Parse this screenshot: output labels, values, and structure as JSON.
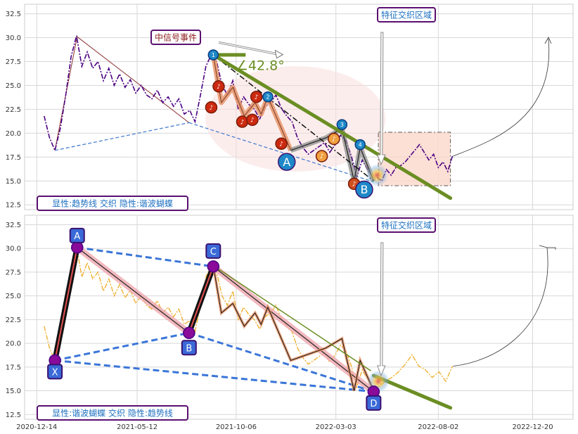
{
  "chart_data": [
    {
      "type": "line",
      "panel": "top",
      "title": "",
      "xlabel": "",
      "ylabel": "",
      "ylim": [
        12.0,
        33.5
      ],
      "yticks": [
        12.5,
        15.0,
        17.5,
        20.0,
        22.5,
        25.0,
        27.5,
        30.0,
        32.5
      ],
      "grid": true,
      "series": [
        {
          "name": "",
          "color": "#4b0082",
          "style": "dash-dot",
          "x": [
            "2020-12-25",
            "2021-01-02",
            "2021-01-10",
            "2021-01-18",
            "2021-01-26",
            "2021-02-03",
            "2021-02-11",
            "2021-02-19",
            "2021-02-27",
            "2021-03-07",
            "2021-03-15",
            "2021-03-23",
            "2021-03-31",
            "2021-04-08",
            "2021-04-16",
            "2021-04-24",
            "2021-05-02",
            "2021-05-10",
            "2021-05-18",
            "2021-05-26",
            "2021-06-03",
            "2021-06-11",
            "2021-06-19",
            "2021-06-27",
            "2021-07-05",
            "2021-07-13",
            "2021-07-21",
            "2021-07-29",
            "2021-08-06",
            "2021-08-14",
            "2021-08-22",
            "2021-08-30",
            "2021-09-07",
            "2021-09-15",
            "2021-09-23",
            "2021-10-01",
            "2021-10-09",
            "2021-10-17",
            "2021-10-25",
            "2021-11-02",
            "2021-11-10",
            "2021-11-18",
            "2021-11-26",
            "2021-12-04",
            "2021-12-12",
            "2021-12-20",
            "2021-12-28",
            "2022-01-05",
            "2022-01-13",
            "2022-01-21",
            "2022-01-29",
            "2022-02-06",
            "2022-02-14",
            "2022-02-22",
            "2022-03-02",
            "2022-03-10",
            "2022-03-18",
            "2022-03-26",
            "2022-04-03",
            "2022-04-11",
            "2022-04-19",
            "2022-04-27"
          ],
          "values": [
            21.8,
            19.5,
            18.2,
            20.5,
            24.0,
            28.0,
            30.2,
            27.0,
            28.5,
            26.8,
            27.5,
            25.5,
            26.8,
            25.0,
            26.2,
            24.8,
            25.6,
            24.2,
            25.0,
            24.0,
            23.6,
            24.5,
            23.2,
            23.8,
            22.8,
            23.6,
            22.0,
            22.4,
            21.2,
            24.0,
            27.0,
            28.2,
            27.5,
            25.0,
            24.0,
            25.5,
            22.5,
            23.8,
            23.0,
            22.5,
            21.5,
            22.8,
            23.2,
            24.0,
            22.6,
            21.8,
            21.2,
            19.5,
            18.5,
            17.8,
            18.2,
            18.6,
            19.0,
            18.0,
            18.8,
            19.8,
            19.2,
            17.6,
            15.4,
            17.2,
            16.2,
            15.3
          ]
        },
        {
          "name": "",
          "color": "#4b0082",
          "style": "dash-dot",
          "x": [
            "2022-05-03",
            "2022-05-10",
            "2022-05-17",
            "2022-05-24",
            "2022-05-31",
            "2022-06-07",
            "2022-06-14",
            "2022-06-21",
            "2022-06-28",
            "2022-07-05",
            "2022-07-12",
            "2022-07-19",
            "2022-07-26",
            "2022-08-02",
            "2022-08-09",
            "2022-08-16",
            "2022-08-23"
          ],
          "values": [
            15.4,
            15.0,
            16.2,
            15.6,
            16.4,
            16.6,
            17.0,
            17.6,
            18.2,
            18.8,
            18.0,
            17.2,
            17.8,
            16.4,
            17.0,
            16.0,
            17.6
          ]
        }
      ],
      "harmonic_points": [
        {
          "label": "1",
          "x": "2021-09-02",
          "y": 28.2
        },
        {
          "label": "2",
          "x": "2021-11-22",
          "y": 23.8
        },
        {
          "label": "3",
          "x": "2022-03-12",
          "y": 20.9
        },
        {
          "label": "4",
          "x": "2022-04-08",
          "y": 18.8
        }
      ],
      "event_markers": [
        {
          "x": "2021-08-30",
          "y": 22.7
        },
        {
          "x": "2021-09-10",
          "y": 24.9
        },
        {
          "x": "2021-10-15",
          "y": 21.2
        },
        {
          "x": "2021-10-30",
          "y": 21.4
        },
        {
          "x": "2021-11-05",
          "y": 23.8
        },
        {
          "x": "2021-12-12",
          "y": 18.9
        },
        {
          "x": "2022-02-10",
          "y": 17.6
        },
        {
          "x": "2022-02-28",
          "y": 19.4
        },
        {
          "x": "2022-03-30",
          "y": 14.7
        }
      ],
      "wave_labels": [
        {
          "label": "A",
          "x": "2021-12-20",
          "y": 17.0
        },
        {
          "label": "B",
          "x": "2022-04-14",
          "y": 14.1
        }
      ],
      "trendline": {
        "from": {
          "x": "2021-09-02",
          "y": 28.2
        },
        "to": {
          "x": "2022-08-20",
          "y": 13.2
        },
        "color": "#6b8e23"
      },
      "angle_label": "∠42.8°",
      "annotations": [
        {
          "text": "中信号事件",
          "x": "2021-07-10",
          "y": 30.0
        },
        {
          "text": "特征交织区域",
          "x": "2022-06-20",
          "y": 32.5
        },
        {
          "text": "显性:趋势线 交织 隐性:谐波蝴蝶",
          "x": "2021-01-05",
          "y": 12.5
        }
      ],
      "feature_zone": {
        "x0": "2022-05-05",
        "x1": "2022-08-20",
        "y0": 14.5,
        "y1": 20.1
      }
    },
    {
      "type": "line",
      "panel": "bottom",
      "title": "",
      "xlabel": "",
      "ylabel": "",
      "ylim": [
        12.0,
        33.5
      ],
      "yticks": [
        12.5,
        15.0,
        17.5,
        20.0,
        22.5,
        25.0,
        27.5,
        30.0,
        32.5
      ],
      "xticks": [
        "2020-12-14",
        "2021-05-12",
        "2021-10-06",
        "2022-03-03",
        "2022-08-02",
        "2022-12-20"
      ],
      "grid": true,
      "series": [
        {
          "name": "",
          "color": "#f0b030",
          "style": "dash-dot",
          "x": [
            "2020-12-25",
            "2021-01-02",
            "2021-01-10",
            "2021-01-18",
            "2021-01-26",
            "2021-02-03",
            "2021-02-11",
            "2021-02-19",
            "2021-02-27",
            "2021-03-07",
            "2021-03-15",
            "2021-03-23",
            "2021-03-31",
            "2021-04-08",
            "2021-04-16",
            "2021-04-24",
            "2021-05-02",
            "2021-05-10",
            "2021-05-18",
            "2021-05-26",
            "2021-06-03",
            "2021-06-11",
            "2021-06-19",
            "2021-06-27",
            "2021-07-05",
            "2021-07-13",
            "2021-07-21",
            "2021-07-29",
            "2021-08-06",
            "2021-08-14",
            "2021-08-22",
            "2021-08-30",
            "2021-09-07",
            "2021-09-15",
            "2021-09-23",
            "2021-10-01",
            "2021-10-09",
            "2021-10-17",
            "2021-10-25",
            "2021-11-02",
            "2021-11-10",
            "2021-11-18",
            "2021-11-26",
            "2021-12-04",
            "2021-12-12",
            "2021-12-20",
            "2021-12-28",
            "2022-01-05",
            "2022-01-13",
            "2022-01-21",
            "2022-01-29",
            "2022-02-06",
            "2022-02-14",
            "2022-02-22",
            "2022-03-02",
            "2022-03-10",
            "2022-03-18",
            "2022-03-26",
            "2022-04-03",
            "2022-04-11",
            "2022-04-19",
            "2022-04-27",
            "2022-05-05",
            "2022-05-15",
            "2022-05-25",
            "2022-06-04",
            "2022-06-14",
            "2022-06-24",
            "2022-07-04",
            "2022-07-14",
            "2022-07-24",
            "2022-08-03",
            "2022-08-13",
            "2022-08-23"
          ],
          "values": [
            21.8,
            19.5,
            18.2,
            20.5,
            24.0,
            28.0,
            30.2,
            27.0,
            28.5,
            26.8,
            27.5,
            25.5,
            26.8,
            25.0,
            26.2,
            24.8,
            25.6,
            24.2,
            25.0,
            24.0,
            23.6,
            24.5,
            23.2,
            23.8,
            22.8,
            23.6,
            22.0,
            22.4,
            21.2,
            24.0,
            27.0,
            28.2,
            27.5,
            25.0,
            24.0,
            25.5,
            22.5,
            23.8,
            23.0,
            22.5,
            21.5,
            22.8,
            23.2,
            24.0,
            22.6,
            21.8,
            21.2,
            19.5,
            18.5,
            17.8,
            18.2,
            18.6,
            19.0,
            18.0,
            18.8,
            19.8,
            19.2,
            17.6,
            15.4,
            17.2,
            16.2,
            15.3,
            15.4,
            16.0,
            16.4,
            17.0,
            17.8,
            18.8,
            17.6,
            17.2,
            16.4,
            17.0,
            16.0,
            17.6
          ]
        }
      ],
      "harmonic_pattern": [
        {
          "label": "X",
          "x": "2021-01-10",
          "y": 18.2
        },
        {
          "label": "A",
          "x": "2021-02-12",
          "y": 30.1
        },
        {
          "label": "B",
          "x": "2021-07-28",
          "y": 21.1
        },
        {
          "label": "C",
          "x": "2021-09-02",
          "y": 28.1
        },
        {
          "label": "D",
          "x": "2022-04-28",
          "y": 14.9
        }
      ],
      "trendline": {
        "from": {
          "x": "2021-09-02",
          "y": 28.2
        },
        "to": {
          "x": "2022-08-20",
          "y": 13.2
        },
        "color": "#6b8e23"
      },
      "annotations": [
        {
          "text": "特征交织区域",
          "x": "2022-06-20",
          "y": 32.5
        },
        {
          "text": "显性:谐波蝴蝶 交织 隐性:趋势线",
          "x": "2021-01-05",
          "y": 12.5
        }
      ]
    }
  ]
}
